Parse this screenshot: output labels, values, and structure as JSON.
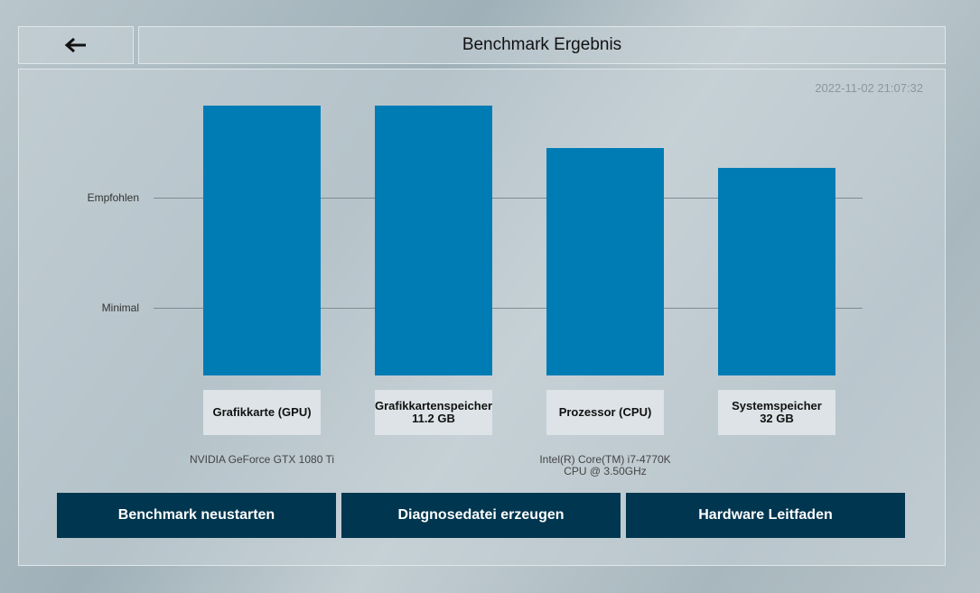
{
  "header": {
    "back_icon": "arrow-left-icon",
    "title": "Benchmark Ergebnis"
  },
  "timestamp": "2022-11-02 21:07:32",
  "chart_data": {
    "type": "bar",
    "categories": [
      "Grafikkarte (GPU)",
      "Grafikkartenspeicher",
      "Prozessor (CPU)",
      "Systemspeicher"
    ],
    "category_values": [
      "",
      "11.2 GB",
      "",
      "32 GB"
    ],
    "hardware": [
      "NVIDIA GeForce GTX 1080 Ti",
      "",
      "Intel(R) Core(TM) i7-4770K CPU @ 3.50GHz",
      ""
    ],
    "values": [
      152,
      152,
      128,
      117
    ],
    "reference_lines": [
      {
        "label": "Empfohlen",
        "value": 100
      },
      {
        "label": "Minimal",
        "value": 38
      }
    ],
    "ylim": [
      0,
      152
    ],
    "color": "#007cb5"
  },
  "buttons": [
    {
      "label": "Benchmark neustarten"
    },
    {
      "label": "Diagnosedatei erzeugen"
    },
    {
      "label": "Hardware Leitfaden"
    }
  ]
}
